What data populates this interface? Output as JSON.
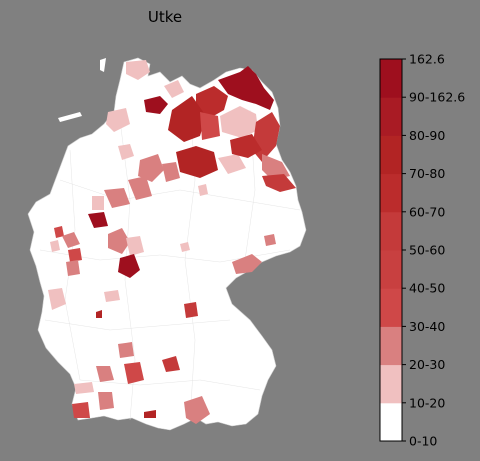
{
  "title": "Utke",
  "colors": {
    "background": "#808080",
    "land": "#ffffff",
    "border": "#cfcfcf",
    "c1": "#ffffff",
    "c2": "#f0c0c0",
    "c3": "#d98080",
    "c4": "#cf4848",
    "c5": "#c43a3a",
    "c6": "#bb2c2c",
    "c7": "#b22424",
    "c8": "#a91b24",
    "c9": "#9e0f1e"
  },
  "legend": {
    "max_label": "162.6",
    "bins": [
      {
        "label": "0-10",
        "color": "#ffffff"
      },
      {
        "label": "10-20",
        "color": "#f0c0c0"
      },
      {
        "label": "20-30",
        "color": "#d98080"
      },
      {
        "label": "30-40",
        "color": "#cf4848"
      },
      {
        "label": "40-50",
        "color": "#c84040"
      },
      {
        "label": "50-60",
        "color": "#c43a3a"
      },
      {
        "label": "60-70",
        "color": "#bb2c2c"
      },
      {
        "label": "70-80",
        "color": "#b22424"
      },
      {
        "label": "80-90",
        "color": "#a91b24"
      },
      {
        "label": "90-162.6",
        "color": "#9e0f1e"
      }
    ]
  }
}
